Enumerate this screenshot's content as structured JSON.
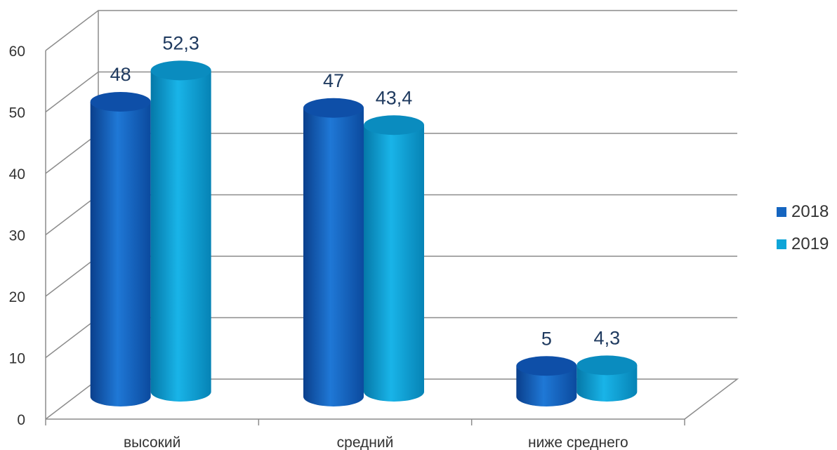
{
  "chart_data": {
    "type": "bar",
    "categories": [
      "высокий",
      "средний",
      "ниже среднего"
    ],
    "series": [
      {
        "name": "2018",
        "values": [
          48,
          47,
          5
        ],
        "labels": [
          "48",
          "47",
          "5"
        ],
        "color": "#1565C0"
      },
      {
        "name": "2019",
        "values": [
          52.3,
          43.4,
          4.3
        ],
        "labels": [
          "52,3",
          "43,4",
          "4,3"
        ],
        "color": "#0EA5D8"
      }
    ],
    "ylim": [
      0,
      60
    ],
    "yticks": [
      "0",
      "10",
      "20",
      "30",
      "40",
      "50",
      "60"
    ],
    "grid": true,
    "legend": "right",
    "style": "3d-cylinder"
  }
}
